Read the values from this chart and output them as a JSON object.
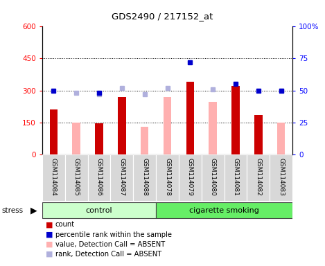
{
  "title": "GDS2490 / 217152_at",
  "samples": [
    "GSM114084",
    "GSM114085",
    "GSM114086",
    "GSM114087",
    "GSM114088",
    "GSM114078",
    "GSM114079",
    "GSM114080",
    "GSM114081",
    "GSM114082",
    "GSM114083"
  ],
  "count": [
    210,
    null,
    145,
    270,
    null,
    null,
    340,
    null,
    320,
    185,
    null
  ],
  "percentile": [
    50,
    null,
    48,
    null,
    null,
    null,
    72,
    null,
    55,
    50,
    50
  ],
  "value_absent": [
    null,
    150,
    null,
    null,
    130,
    270,
    null,
    245,
    null,
    null,
    150
  ],
  "rank_absent": [
    null,
    48,
    47,
    52,
    47,
    52,
    null,
    51,
    null,
    null,
    50
  ],
  "ylim_left": [
    0,
    600
  ],
  "ylim_right": [
    0,
    100
  ],
  "yticks_left": [
    0,
    150,
    300,
    450,
    600
  ],
  "yticks_right": [
    0,
    25,
    50,
    75,
    100
  ],
  "ytick_labels_left": [
    "0",
    "150",
    "300",
    "450",
    "600"
  ],
  "ytick_labels_right": [
    "0",
    "25",
    "50",
    "75",
    "100%"
  ],
  "count_color": "#cc0000",
  "percentile_color": "#0000cc",
  "value_absent_color": "#ffb0b0",
  "rank_absent_color": "#b0b0dd",
  "control_color": "#ccffcc",
  "smoking_color": "#66ee66",
  "sample_bg": "#d8d8d8",
  "n_control": 5,
  "n_smoking": 6,
  "legend_items": [
    [
      "count",
      "#cc0000",
      "square"
    ],
    [
      "percentile rank within the sample",
      "#0000cc",
      "square"
    ],
    [
      "value, Detection Call = ABSENT",
      "#ffb0b0",
      "square"
    ],
    [
      "rank, Detection Call = ABSENT",
      "#b0b0dd",
      "square"
    ]
  ]
}
